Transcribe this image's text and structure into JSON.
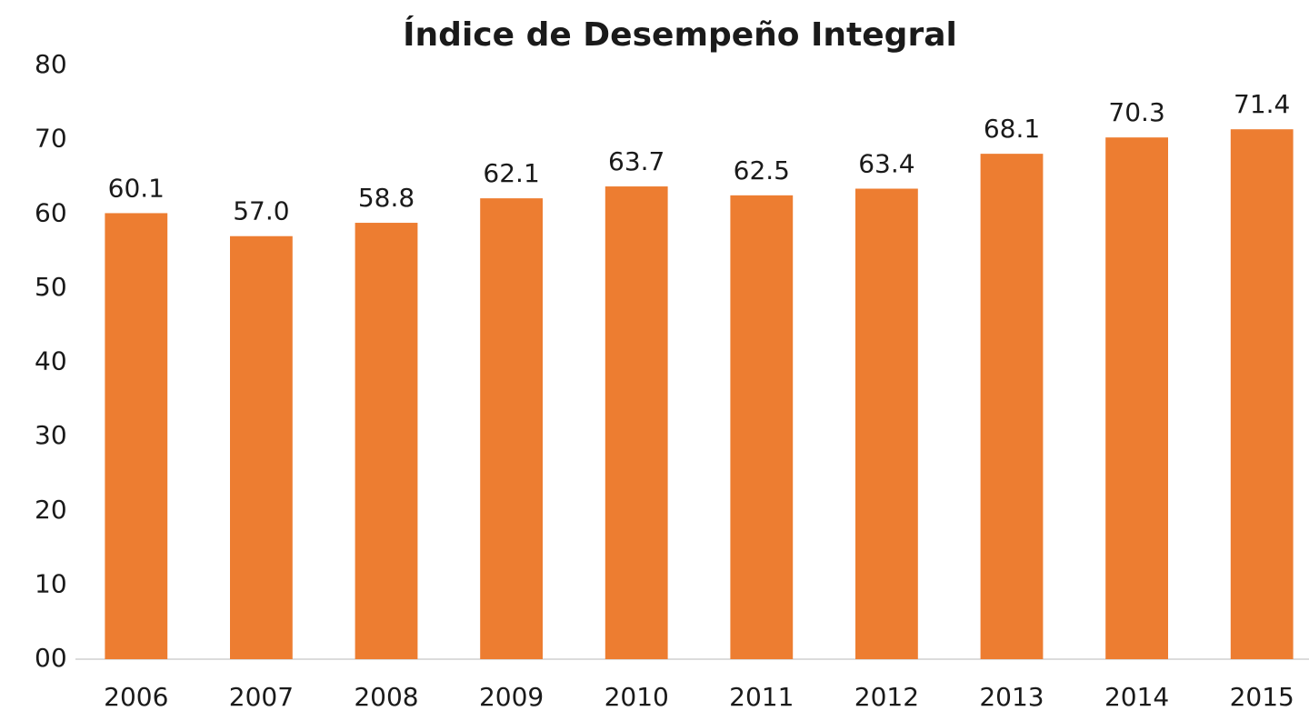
{
  "chart_data": {
    "type": "bar",
    "title": "Índice de Desempeño Integral",
    "categories": [
      "2006",
      "2007",
      "2008",
      "2009",
      "2010",
      "2011",
      "2012",
      "2013",
      "2014",
      "2015"
    ],
    "values": [
      60.1,
      57.0,
      58.8,
      62.1,
      63.7,
      62.5,
      63.4,
      68.1,
      70.3,
      71.4
    ],
    "value_labels": [
      "60.1",
      "57.0",
      "58.8",
      "62.1",
      "63.7",
      "62.5",
      "63.4",
      "68.1",
      "70.3",
      "71.4"
    ],
    "color": "#ed7d31",
    "ylim": [
      0,
      80
    ],
    "yticks": [
      {
        "value": 0,
        "label": "00"
      },
      10,
      20,
      30,
      40,
      50,
      60,
      70,
      80
    ],
    "grid": false
  }
}
